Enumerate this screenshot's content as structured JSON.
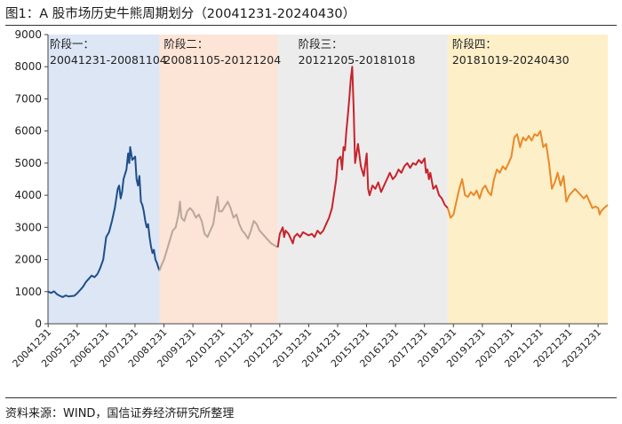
{
  "title": "图1：A 股市场历史牛熊周期划分（20041231-20240430）",
  "source": "资料来源：WIND，国信证券经济研究所整理",
  "chart_data": {
    "type": "line",
    "ylim": [
      0,
      9000
    ],
    "yticks": [
      0,
      1000,
      2000,
      3000,
      4000,
      5000,
      6000,
      7000,
      8000,
      9000
    ],
    "xlim": [
      2004.99,
      2024.33
    ],
    "xtick_labels": [
      "20041231",
      "20051231",
      "20061231",
      "20071231",
      "20081231",
      "20091231",
      "20101231",
      "20111231",
      "20121231",
      "20131231",
      "20141231",
      "20151231",
      "20161231",
      "20171231",
      "20181231",
      "20191231",
      "20201231",
      "20211231",
      "20221231",
      "20231231"
    ],
    "grid": false,
    "phases": [
      {
        "name": "阶段一：",
        "range": "20041231-20081104",
        "start": 2004.99,
        "end": 2008.84,
        "color": "#dce6f5",
        "line_color": "#1f4e89"
      },
      {
        "name": "阶段二：",
        "range": "20081105-20121204",
        "start": 2008.84,
        "end": 2012.93,
        "color": "#fce4d6",
        "line_color": "#b8a79c"
      },
      {
        "name": "阶段三：",
        "range": "20121205-20181018",
        "start": 2012.93,
        "end": 2018.8,
        "color": "#ececec",
        "line_color": "#c8232c"
      },
      {
        "name": "阶段四：",
        "range": "20181019-20240430",
        "start": 2018.8,
        "end": 2024.33,
        "color": "#fdefc8",
        "line_color": "#e8892b"
      }
    ],
    "series": [
      {
        "x": [
          2004.99,
          2005.1,
          2005.2,
          2005.3,
          2005.4,
          2005.5,
          2005.6,
          2005.7,
          2005.8,
          2005.9,
          2006.0,
          2006.1,
          2006.2,
          2006.3,
          2006.4,
          2006.5,
          2006.6,
          2006.7,
          2006.8,
          2006.9,
          2007.0,
          2007.1,
          2007.2,
          2007.3,
          2007.4,
          2007.45,
          2007.5,
          2007.55,
          2007.6,
          2007.7,
          2007.76,
          2007.8,
          2007.83,
          2007.9,
          2008.0,
          2008.05,
          2008.1,
          2008.15,
          2008.2,
          2008.25,
          2008.3,
          2008.35,
          2008.4,
          2008.45,
          2008.5,
          2008.55,
          2008.6,
          2008.65,
          2008.7,
          2008.75,
          2008.84
        ],
        "y": [
          1000,
          960,
          1010,
          920,
          870,
          830,
          880,
          850,
          860,
          870,
          950,
          1050,
          1150,
          1300,
          1400,
          1500,
          1450,
          1550,
          1750,
          2000,
          2700,
          2850,
          3200,
          3600,
          4200,
          4300,
          3900,
          4100,
          4500,
          4800,
          5300,
          5000,
          5500,
          5100,
          5200,
          4500,
          4300,
          4600,
          3800,
          3700,
          3500,
          3200,
          3000,
          3100,
          2700,
          2400,
          2200,
          2300,
          2000,
          1900,
          1650
        ]
      },
      {
        "x": [
          2008.84,
          2008.9,
          2009.0,
          2009.1,
          2009.2,
          2009.3,
          2009.4,
          2009.5,
          2009.55,
          2009.6,
          2009.7,
          2009.8,
          2009.9,
          2010.0,
          2010.1,
          2010.2,
          2010.3,
          2010.4,
          2010.5,
          2010.6,
          2010.7,
          2010.8,
          2010.85,
          2010.9,
          2011.0,
          2011.1,
          2011.2,
          2011.3,
          2011.4,
          2011.5,
          2011.6,
          2011.7,
          2011.8,
          2011.9,
          2012.0,
          2012.1,
          2012.2,
          2012.3,
          2012.4,
          2012.5,
          2012.6,
          2012.7,
          2012.8,
          2012.93
        ],
        "y": [
          1650,
          1800,
          2000,
          2300,
          2600,
          2900,
          3000,
          3400,
          3800,
          3300,
          3200,
          3500,
          3600,
          3500,
          3300,
          3400,
          3200,
          2800,
          2700,
          2900,
          3100,
          3700,
          3950,
          3500,
          3500,
          3650,
          3800,
          3600,
          3300,
          3400,
          3100,
          2900,
          2800,
          2650,
          2900,
          3200,
          3100,
          2900,
          2800,
          2700,
          2600,
          2500,
          2450,
          2380
        ]
      },
      {
        "x": [
          2012.93,
          2013.0,
          2013.1,
          2013.15,
          2013.2,
          2013.3,
          2013.4,
          2013.45,
          2013.5,
          2013.6,
          2013.7,
          2013.8,
          2013.9,
          2014.0,
          2014.1,
          2014.2,
          2014.3,
          2014.4,
          2014.5,
          2014.6,
          2014.7,
          2014.8,
          2014.85,
          2014.9,
          2014.95,
          2015.0,
          2015.1,
          2015.15,
          2015.2,
          2015.25,
          2015.3,
          2015.35,
          2015.4,
          2015.45,
          2015.5,
          2015.55,
          2015.6,
          2015.7,
          2015.8,
          2015.9,
          2016.0,
          2016.05,
          2016.1,
          2016.2,
          2016.3,
          2016.4,
          2016.5,
          2016.6,
          2016.7,
          2016.8,
          2016.9,
          2017.0,
          2017.1,
          2017.2,
          2017.3,
          2017.4,
          2017.5,
          2017.6,
          2017.7,
          2017.8,
          2017.9,
          2018.0,
          2018.05,
          2018.1,
          2018.15,
          2018.2,
          2018.3,
          2018.4,
          2018.5,
          2018.6,
          2018.7,
          2018.8
        ],
        "y": [
          2380,
          2800,
          3000,
          2700,
          2900,
          2800,
          2600,
          2500,
          2700,
          2800,
          2700,
          2850,
          2800,
          2750,
          2800,
          2700,
          2900,
          2800,
          2900,
          3100,
          3300,
          3600,
          3900,
          4200,
          4500,
          5100,
          5200,
          4800,
          5500,
          5400,
          6000,
          6500,
          7000,
          7600,
          8000,
          6700,
          5000,
          5600,
          4900,
          4600,
          5300,
          4200,
          4000,
          4300,
          4200,
          4400,
          4100,
          4300,
          4500,
          4700,
          4500,
          4600,
          4800,
          4700,
          4900,
          5000,
          4850,
          5000,
          4950,
          5100,
          5000,
          5150,
          4700,
          4800,
          4500,
          4700,
          4200,
          4300,
          4000,
          3900,
          3700,
          3600
        ]
      },
      {
        "x": [
          2018.8,
          2018.9,
          2019.0,
          2019.1,
          2019.2,
          2019.3,
          2019.4,
          2019.5,
          2019.6,
          2019.7,
          2019.8,
          2019.9,
          2020.0,
          2020.1,
          2020.2,
          2020.3,
          2020.4,
          2020.5,
          2020.6,
          2020.7,
          2020.8,
          2020.9,
          2021.0,
          2021.1,
          2021.2,
          2021.3,
          2021.4,
          2021.5,
          2021.6,
          2021.7,
          2021.8,
          2021.9,
          2022.0,
          2022.1,
          2022.2,
          2022.3,
          2022.4,
          2022.5,
          2022.6,
          2022.7,
          2022.8,
          2022.9,
          2023.0,
          2023.1,
          2023.2,
          2023.3,
          2023.4,
          2023.5,
          2023.6,
          2023.7,
          2023.8,
          2023.9,
          2024.0,
          2024.05,
          2024.1,
          2024.2,
          2024.33
        ],
        "y": [
          3600,
          3300,
          3400,
          3800,
          4200,
          4500,
          4000,
          3950,
          4100,
          4000,
          4150,
          3900,
          4200,
          4300,
          4100,
          4000,
          4500,
          4800,
          4700,
          4900,
          4800,
          5000,
          5200,
          5800,
          5900,
          5500,
          5800,
          5700,
          5850,
          5700,
          5900,
          5850,
          6000,
          5500,
          5600,
          5000,
          4200,
          4400,
          4700,
          4300,
          4600,
          3800,
          4000,
          4100,
          4200,
          4100,
          4000,
          3900,
          4000,
          3800,
          3600,
          3650,
          3600,
          3400,
          3500,
          3600,
          3700
        ]
      }
    ]
  }
}
